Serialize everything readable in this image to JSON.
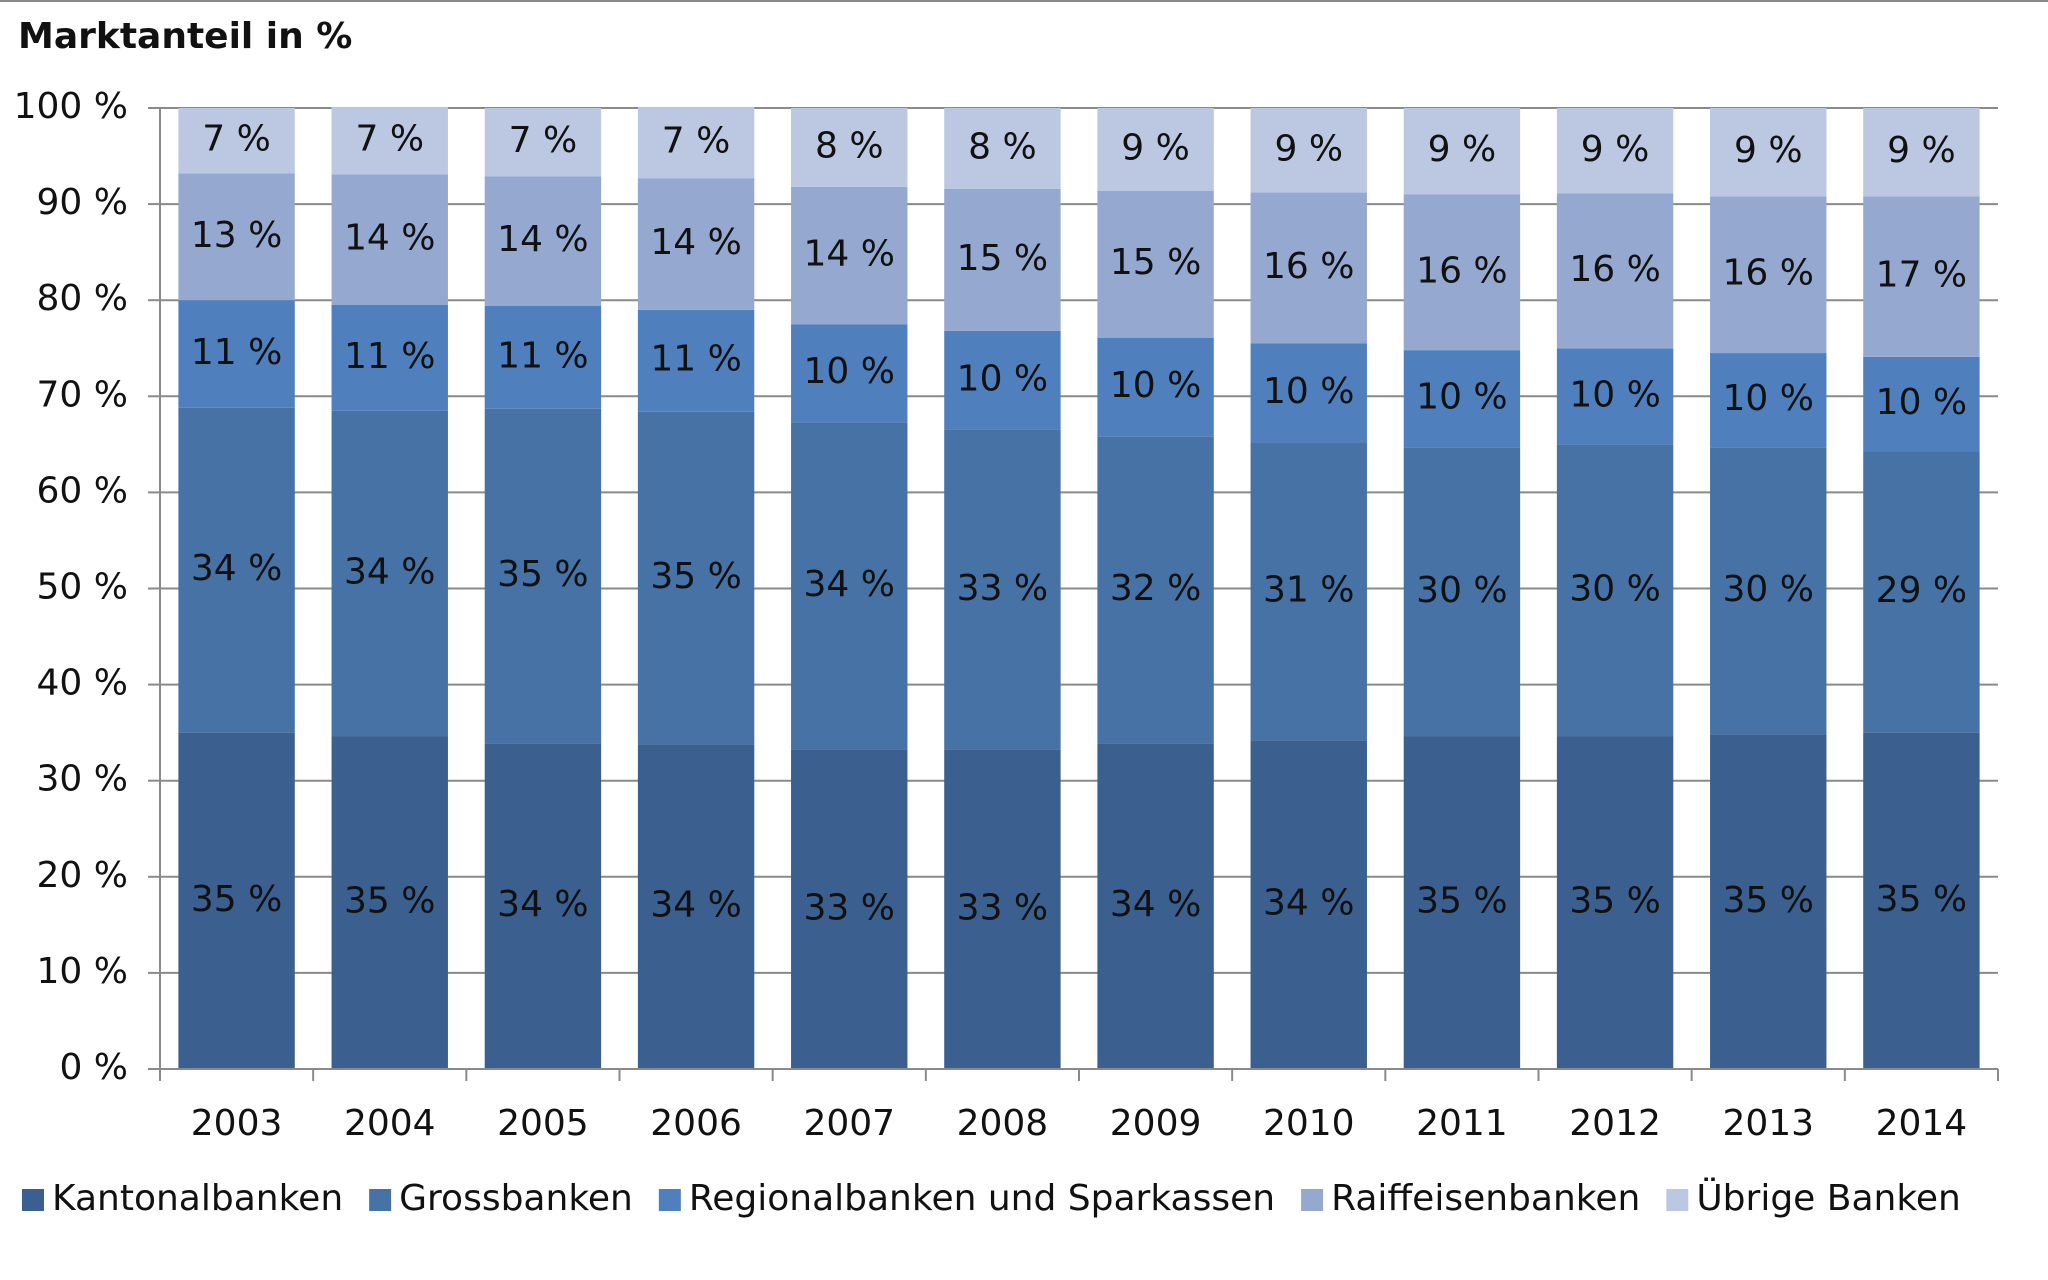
{
  "chart_data": {
    "type": "stacked_bar",
    "y_axis_label": "Marktanteil in %",
    "categories": [
      "2003",
      "2004",
      "2005",
      "2006",
      "2007",
      "2008",
      "2009",
      "2010",
      "2011",
      "2012",
      "2013",
      "2014"
    ],
    "series": [
      {
        "name": "Kantonalbanken",
        "color": "#3b5f8e",
        "values": [
          35.0,
          34.6,
          33.9,
          33.8,
          33.2,
          33.2,
          33.9,
          34.2,
          34.6,
          34.6,
          34.8,
          35.0
        ],
        "value_labels": [
          "35 %",
          "35 %",
          "34 %",
          "34 %",
          "33 %",
          "33 %",
          "34 %",
          "34 %",
          "35 %",
          "35 %",
          "35 %",
          "35 %"
        ]
      },
      {
        "name": "Grossbanken",
        "color": "#4672a6",
        "values": [
          33.8,
          33.9,
          34.8,
          34.6,
          34.1,
          33.3,
          31.9,
          31.0,
          30.1,
          30.4,
          29.9,
          29.3
        ],
        "value_labels": [
          "34 %",
          "34 %",
          "35 %",
          "35 %",
          "34 %",
          "33 %",
          "32 %",
          "31 %",
          "30 %",
          "30 %",
          "30 %",
          "29 %"
        ]
      },
      {
        "name": "Regionalbanken und Sparkassen",
        "color": "#4f80bd",
        "values": [
          11.2,
          11.0,
          10.7,
          10.6,
          10.2,
          10.3,
          10.3,
          10.3,
          10.1,
          10.0,
          9.8,
          9.8
        ],
        "value_labels": [
          "11 %",
          "11 %",
          "11 %",
          "11 %",
          "10 %",
          "10 %",
          "10 %",
          "10 %",
          "10 %",
          "10 %",
          "10 %",
          "10 %"
        ]
      },
      {
        "name": "Raiffeisenbanken",
        "color": "#95a8cf",
        "values": [
          13.2,
          13.6,
          13.5,
          13.7,
          14.3,
          14.8,
          15.3,
          15.7,
          16.2,
          16.1,
          16.3,
          16.7
        ],
        "value_labels": [
          "13 %",
          "14 %",
          "14 %",
          "14 %",
          "14 %",
          "15 %",
          "15 %",
          "16 %",
          "16 %",
          "16 %",
          "16 %",
          "17 %"
        ]
      },
      {
        "name": "Übrige Banken",
        "color": "#bcc8e1",
        "values": [
          6.8,
          7.0,
          7.1,
          7.4,
          8.2,
          8.4,
          8.6,
          8.8,
          9.0,
          8.9,
          9.2,
          9.2
        ],
        "value_labels": [
          "7 %",
          "7 %",
          "7 %",
          "7 %",
          "8 %",
          "8 %",
          "9 %",
          "9 %",
          "9 %",
          "9 %",
          "9 %",
          "9 %"
        ]
      }
    ],
    "ylim": [
      0,
      100
    ],
    "yticks": [
      {
        "value": 0,
        "label": "0 %"
      },
      {
        "value": 10,
        "label": "10 %"
      },
      {
        "value": 20,
        "label": "20 %"
      },
      {
        "value": 30,
        "label": "30 %"
      },
      {
        "value": 40,
        "label": "40 %"
      },
      {
        "value": 50,
        "label": "50 %"
      },
      {
        "value": 60,
        "label": "60 %"
      },
      {
        "value": 70,
        "label": "70 %"
      },
      {
        "value": 80,
        "label": "80 %"
      },
      {
        "value": 90,
        "label": "90 %"
      },
      {
        "value": 100,
        "label": "100 %"
      }
    ],
    "grid": true,
    "legend": "bottom"
  }
}
